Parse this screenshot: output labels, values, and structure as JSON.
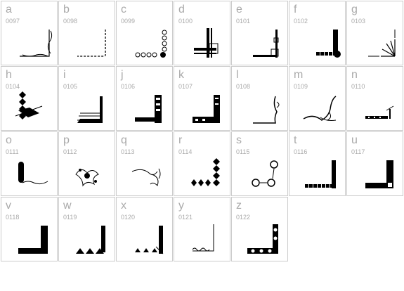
{
  "cells": [
    {
      "ch": "a",
      "code": "0097",
      "icon": "corner-ornament-icon"
    },
    {
      "ch": "b",
      "code": "0098",
      "icon": "corner-ornament-icon"
    },
    {
      "ch": "c",
      "code": "0099",
      "icon": "corner-ornament-icon"
    },
    {
      "ch": "d",
      "code": "0100",
      "icon": "corner-ornament-icon"
    },
    {
      "ch": "e",
      "code": "0101",
      "icon": "corner-ornament-icon"
    },
    {
      "ch": "f",
      "code": "0102",
      "icon": "corner-ornament-icon"
    },
    {
      "ch": "g",
      "code": "0103",
      "icon": "corner-ornament-icon"
    },
    {
      "ch": "h",
      "code": "0104",
      "icon": "corner-ornament-icon"
    },
    {
      "ch": "i",
      "code": "0105",
      "icon": "corner-ornament-icon"
    },
    {
      "ch": "j",
      "code": "0106",
      "icon": "corner-ornament-icon"
    },
    {
      "ch": "k",
      "code": "0107",
      "icon": "corner-ornament-icon"
    },
    {
      "ch": "l",
      "code": "0108",
      "icon": "corner-ornament-icon"
    },
    {
      "ch": "m",
      "code": "0109",
      "icon": "corner-ornament-icon"
    },
    {
      "ch": "n",
      "code": "0110",
      "icon": "corner-ornament-icon"
    },
    {
      "ch": "o",
      "code": "0111",
      "icon": "corner-ornament-icon"
    },
    {
      "ch": "p",
      "code": "0112",
      "icon": "corner-ornament-icon"
    },
    {
      "ch": "q",
      "code": "0113",
      "icon": "corner-ornament-icon"
    },
    {
      "ch": "r",
      "code": "0114",
      "icon": "corner-ornament-icon"
    },
    {
      "ch": "s",
      "code": "0115",
      "icon": "corner-ornament-icon"
    },
    {
      "ch": "t",
      "code": "0116",
      "icon": "corner-ornament-icon"
    },
    {
      "ch": "u",
      "code": "0117",
      "icon": "corner-ornament-icon"
    },
    {
      "ch": "v",
      "code": "0118",
      "icon": "corner-ornament-icon"
    },
    {
      "ch": "w",
      "code": "0119",
      "icon": "corner-ornament-icon"
    },
    {
      "ch": "x",
      "code": "0120",
      "icon": "corner-ornament-icon"
    },
    {
      "ch": "y",
      "code": "0121",
      "icon": "corner-ornament-icon"
    },
    {
      "ch": "z",
      "code": "0122",
      "icon": "corner-ornament-icon"
    }
  ],
  "colors": {
    "border": "#cccccc",
    "label": "#aaaaaa",
    "ink": "#000000"
  }
}
